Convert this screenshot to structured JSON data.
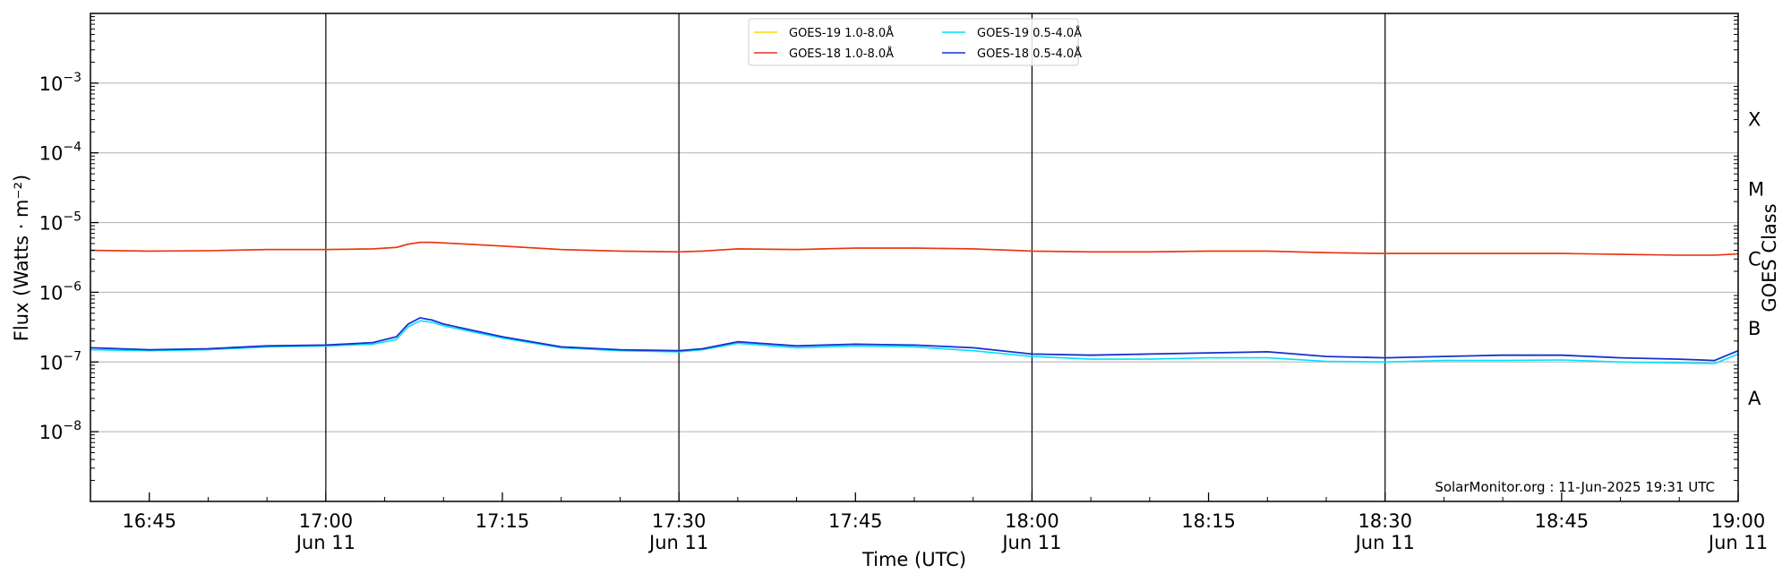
{
  "chart_data": {
    "type": "line",
    "title": "",
    "xlabel": "Time (UTC)",
    "ylabel": "Flux (Watts · m⁻²)",
    "y2label": "GOES Class",
    "yscale": "log",
    "ylim": [
      1e-09,
      0.01
    ],
    "xlim": [
      "16:40",
      "19:00"
    ],
    "grid": "horizontal",
    "legend_position": "top-center",
    "y_ticks": [
      {
        "value": 1e-08,
        "base": "10",
        "exp": "−8"
      },
      {
        "value": 1e-07,
        "base": "10",
        "exp": "−7"
      },
      {
        "value": 1e-06,
        "base": "10",
        "exp": "−6"
      },
      {
        "value": 1e-05,
        "base": "10",
        "exp": "−5"
      },
      {
        "value": 0.0001,
        "base": "10",
        "exp": "−4"
      },
      {
        "value": 0.001,
        "base": "10",
        "exp": "−3"
      }
    ],
    "x_ticks": [
      {
        "time": "16:45",
        "label": "16:45",
        "date": ""
      },
      {
        "time": "17:00",
        "label": "17:00",
        "date": "Jun 11"
      },
      {
        "time": "17:15",
        "label": "17:15",
        "date": ""
      },
      {
        "time": "17:30",
        "label": "17:30",
        "date": "Jun 11"
      },
      {
        "time": "17:45",
        "label": "17:45",
        "date": ""
      },
      {
        "time": "18:00",
        "label": "18:00",
        "date": "Jun 11"
      },
      {
        "time": "18:15",
        "label": "18:15",
        "date": ""
      },
      {
        "time": "18:30",
        "label": "18:30",
        "date": "Jun 11"
      },
      {
        "time": "18:45",
        "label": "18:45",
        "date": ""
      },
      {
        "time": "19:00",
        "label": "19:00",
        "date": "Jun 11"
      }
    ],
    "vlines": [
      "17:00",
      "17:30",
      "18:00",
      "18:30"
    ],
    "goes_classes": [
      {
        "label": "A",
        "value": 3e-08
      },
      {
        "label": "B",
        "value": 3e-07
      },
      {
        "label": "C",
        "value": 3e-06
      },
      {
        "label": "M",
        "value": 3e-05
      },
      {
        "label": "X",
        "value": 0.0003
      }
    ],
    "x": [
      "16:40",
      "16:45",
      "16:50",
      "16:55",
      "17:00",
      "17:04",
      "17:06",
      "17:07",
      "17:08",
      "17:09",
      "17:10",
      "17:15",
      "17:20",
      "17:25",
      "17:30",
      "17:32",
      "17:35",
      "17:40",
      "17:45",
      "17:50",
      "17:55",
      "18:00",
      "18:05",
      "18:10",
      "18:15",
      "18:20",
      "18:25",
      "18:30",
      "18:35",
      "18:40",
      "18:45",
      "18:50",
      "18:55",
      "18:58",
      "19:00"
    ],
    "series": [
      {
        "name": "GOES-19 1.0-8.0Å",
        "color": "#ffd700",
        "values": [
          4e-06,
          3.9e-06,
          3.95e-06,
          4.1e-06,
          4.1e-06,
          4.2e-06,
          4.4e-06,
          4.9e-06,
          5.2e-06,
          5.2e-06,
          5.1e-06,
          4.6e-06,
          4.1e-06,
          3.9e-06,
          3.8e-06,
          3.9e-06,
          4.2e-06,
          4.1e-06,
          4.3e-06,
          4.3e-06,
          4.2e-06,
          3.9e-06,
          3.8e-06,
          3.8e-06,
          3.9e-06,
          3.9e-06,
          3.7e-06,
          3.6e-06,
          3.6e-06,
          3.6e-06,
          3.6e-06,
          3.5e-06,
          3.4e-06,
          3.4e-06,
          3.55e-06
        ]
      },
      {
        "name": "GOES-18 1.0-8.0Å",
        "color": "#e8321e",
        "values": [
          4e-06,
          3.9e-06,
          3.95e-06,
          4.1e-06,
          4.1e-06,
          4.2e-06,
          4.4e-06,
          4.9e-06,
          5.2e-06,
          5.2e-06,
          5.1e-06,
          4.6e-06,
          4.1e-06,
          3.9e-06,
          3.8e-06,
          3.9e-06,
          4.2e-06,
          4.1e-06,
          4.3e-06,
          4.3e-06,
          4.2e-06,
          3.9e-06,
          3.8e-06,
          3.8e-06,
          3.9e-06,
          3.9e-06,
          3.7e-06,
          3.6e-06,
          3.6e-06,
          3.6e-06,
          3.6e-06,
          3.5e-06,
          3.4e-06,
          3.4e-06,
          3.55e-06
        ]
      },
      {
        "name": "GOES-19 0.5-4.0Å",
        "color": "#00e0ff",
        "values": [
          1.5e-07,
          1.45e-07,
          1.5e-07,
          1.65e-07,
          1.7e-07,
          1.8e-07,
          2.1e-07,
          3.2e-07,
          3.9e-07,
          3.7e-07,
          3.3e-07,
          2.2e-07,
          1.6e-07,
          1.45e-07,
          1.4e-07,
          1.5e-07,
          1.85e-07,
          1.6e-07,
          1.7e-07,
          1.65e-07,
          1.45e-07,
          1.2e-07,
          1.1e-07,
          1.1e-07,
          1.15e-07,
          1.15e-07,
          1.02e-07,
          1e-07,
          1.05e-07,
          1.05e-07,
          1.07e-07,
          1e-07,
          9.7e-08,
          9.5e-08,
          1.3e-07
        ]
      },
      {
        "name": "GOES-18 0.5-4.0Å",
        "color": "#1530d0",
        "values": [
          1.6e-07,
          1.5e-07,
          1.55e-07,
          1.7e-07,
          1.75e-07,
          1.9e-07,
          2.3e-07,
          3.5e-07,
          4.3e-07,
          4e-07,
          3.5e-07,
          2.3e-07,
          1.65e-07,
          1.5e-07,
          1.45e-07,
          1.55e-07,
          1.95e-07,
          1.7e-07,
          1.8e-07,
          1.75e-07,
          1.6e-07,
          1.3e-07,
          1.25e-07,
          1.3e-07,
          1.35e-07,
          1.4e-07,
          1.2e-07,
          1.15e-07,
          1.2e-07,
          1.25e-07,
          1.25e-07,
          1.15e-07,
          1.1e-07,
          1.05e-07,
          1.45e-07
        ]
      }
    ],
    "annotation": "SolarMonitor.org : 11-Jun-2025 19:31 UTC"
  }
}
